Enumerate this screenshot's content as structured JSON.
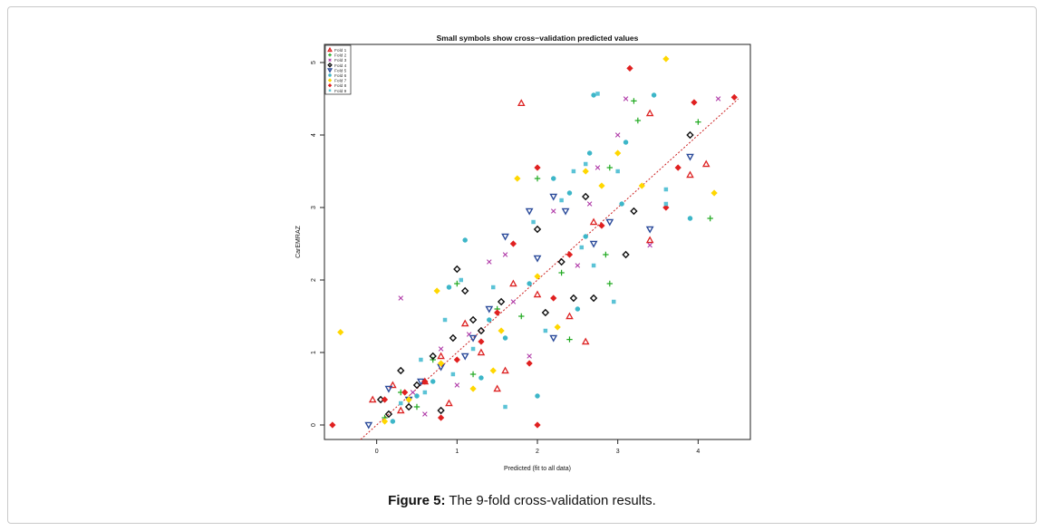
{
  "figure": {
    "caption_label": "Figure 5:",
    "caption_text": " The 9-fold cross-validation results."
  },
  "chart_data": {
    "type": "scatter",
    "title": "Small symbols show cross−validation predicted values",
    "xlabel": "Predicted (fit to all data)",
    "ylabel": "CarEMRAZ",
    "xlim": [
      -0.65,
      4.65
    ],
    "ylim": [
      -0.2,
      5.25
    ],
    "xticks": [
      0,
      1,
      2,
      3,
      4
    ],
    "yticks": [
      0,
      1,
      2,
      3,
      4,
      5
    ],
    "grid": false,
    "legend_position": "top-left",
    "reference_line": {
      "from": [
        -0.2,
        -0.2
      ],
      "to": [
        4.5,
        4.5
      ],
      "color": "#cc2222",
      "style": "dotted"
    },
    "series": [
      {
        "name": "Fold 1",
        "symbol": "triangle",
        "color": "#dd2222",
        "points": [
          [
            1.8,
            4.44
          ],
          [
            3.4,
            4.3
          ],
          [
            4.1,
            3.6
          ],
          [
            3.9,
            3.45
          ],
          [
            2.7,
            2.8
          ],
          [
            3.4,
            2.55
          ],
          [
            1.7,
            1.95
          ],
          [
            2.6,
            1.15
          ],
          [
            2.4,
            1.5
          ],
          [
            0.8,
            0.95
          ],
          [
            1.3,
            1.0
          ],
          [
            0.6,
            0.6
          ],
          [
            1.6,
            0.75
          ],
          [
            0.9,
            0.3
          ],
          [
            0.3,
            0.2
          ],
          [
            -0.05,
            0.35
          ],
          [
            0.2,
            0.55
          ],
          [
            1.5,
            0.5
          ],
          [
            2.0,
            1.8
          ],
          [
            1.1,
            1.4
          ]
        ]
      },
      {
        "name": "Fold 2",
        "symbol": "cross",
        "color": "#22aa22",
        "points": [
          [
            3.2,
            4.47
          ],
          [
            3.25,
            4.2
          ],
          [
            4.0,
            4.18
          ],
          [
            4.15,
            2.85
          ],
          [
            2.9,
            3.55
          ],
          [
            2.85,
            2.35
          ],
          [
            2.0,
            3.4
          ],
          [
            2.9,
            1.95
          ],
          [
            2.4,
            1.18
          ],
          [
            1.0,
            1.95
          ],
          [
            0.3,
            0.45
          ],
          [
            0.7,
            0.9
          ],
          [
            1.5,
            1.6
          ],
          [
            1.2,
            0.7
          ],
          [
            0.1,
            0.1
          ],
          [
            2.3,
            2.1
          ],
          [
            1.8,
            1.5
          ],
          [
            0.5,
            0.25
          ]
        ]
      },
      {
        "name": "Fold 3",
        "symbol": "x",
        "color": "#b03aa8",
        "points": [
          [
            3.1,
            4.5
          ],
          [
            4.25,
            4.5
          ],
          [
            3.0,
            4.0
          ],
          [
            2.75,
            3.55
          ],
          [
            3.4,
            2.48
          ],
          [
            0.3,
            1.75
          ],
          [
            1.6,
            2.35
          ],
          [
            1.4,
            2.25
          ],
          [
            1.15,
            1.25
          ],
          [
            0.8,
            1.05
          ],
          [
            0.45,
            0.45
          ],
          [
            2.2,
            2.95
          ],
          [
            2.65,
            3.05
          ],
          [
            1.9,
            0.95
          ],
          [
            0.6,
            0.15
          ],
          [
            1.0,
            0.55
          ],
          [
            2.5,
            2.2
          ],
          [
            1.7,
            1.7
          ]
        ]
      },
      {
        "name": "Fold 4",
        "symbol": "diamond",
        "color": "#111111",
        "points": [
          [
            3.9,
            4.0
          ],
          [
            2.6,
            3.15
          ],
          [
            3.2,
            2.95
          ],
          [
            2.3,
            2.25
          ],
          [
            2.7,
            1.75
          ],
          [
            2.45,
            1.75
          ],
          [
            2.0,
            2.7
          ],
          [
            1.1,
            1.85
          ],
          [
            1.2,
            1.45
          ],
          [
            1.3,
            1.3
          ],
          [
            0.95,
            1.2
          ],
          [
            0.7,
            0.95
          ],
          [
            0.5,
            0.55
          ],
          [
            0.3,
            0.75
          ],
          [
            0.4,
            0.25
          ],
          [
            0.15,
            0.15
          ],
          [
            0.05,
            0.35
          ],
          [
            1.55,
            1.7
          ],
          [
            1.0,
            2.15
          ],
          [
            2.1,
            1.55
          ],
          [
            3.1,
            2.35
          ],
          [
            0.8,
            0.2
          ]
        ]
      },
      {
        "name": "Fold 5",
        "symbol": "triangle-down",
        "color": "#2a4a9a",
        "points": [
          [
            3.9,
            3.7
          ],
          [
            3.4,
            2.7
          ],
          [
            2.9,
            2.8
          ],
          [
            2.2,
            3.15
          ],
          [
            1.9,
            2.95
          ],
          [
            1.6,
            2.6
          ],
          [
            2.0,
            2.3
          ],
          [
            1.4,
            1.6
          ],
          [
            1.1,
            0.95
          ],
          [
            0.8,
            0.8
          ],
          [
            0.4,
            0.35
          ],
          [
            0.15,
            0.5
          ],
          [
            -0.1,
            0.0
          ],
          [
            2.2,
            1.2
          ],
          [
            2.7,
            2.5
          ],
          [
            1.2,
            1.2
          ],
          [
            0.55,
            0.6
          ],
          [
            2.35,
            2.95
          ]
        ]
      },
      {
        "name": "Fold 6",
        "symbol": "circle",
        "color": "#3db6c8",
        "points": [
          [
            2.7,
            4.55
          ],
          [
            3.45,
            4.55
          ],
          [
            2.65,
            3.75
          ],
          [
            2.2,
            3.4
          ],
          [
            2.4,
            3.2
          ],
          [
            1.1,
            2.55
          ],
          [
            0.9,
            1.9
          ],
          [
            2.5,
            1.6
          ],
          [
            3.1,
            3.9
          ],
          [
            3.9,
            2.85
          ],
          [
            1.3,
            0.65
          ],
          [
            2.0,
            0.4
          ],
          [
            0.5,
            0.4
          ],
          [
            0.2,
            0.05
          ],
          [
            1.6,
            1.2
          ],
          [
            2.6,
            2.6
          ],
          [
            3.05,
            3.05
          ],
          [
            1.9,
            1.95
          ],
          [
            0.7,
            0.6
          ],
          [
            1.4,
            1.45
          ]
        ]
      },
      {
        "name": "Fold 7",
        "symbol": "diamond-filled",
        "color": "#ffd700",
        "points": [
          [
            3.6,
            5.05
          ],
          [
            4.2,
            3.2
          ],
          [
            3.0,
            3.75
          ],
          [
            2.6,
            3.5
          ],
          [
            1.75,
            3.4
          ],
          [
            -0.45,
            1.28
          ],
          [
            0.75,
            1.85
          ],
          [
            2.8,
            3.3
          ],
          [
            1.55,
            1.3
          ],
          [
            1.45,
            0.75
          ],
          [
            0.8,
            0.85
          ],
          [
            0.4,
            0.35
          ],
          [
            0.1,
            0.05
          ],
          [
            2.25,
            1.35
          ],
          [
            2.0,
            2.05
          ],
          [
            3.3,
            3.3
          ],
          [
            1.2,
            0.5
          ]
        ]
      },
      {
        "name": "Fold 8",
        "symbol": "diamond-filled",
        "color": "#e02020",
        "points": [
          [
            3.15,
            4.92
          ],
          [
            3.95,
            4.45
          ],
          [
            4.45,
            4.52
          ],
          [
            3.75,
            3.55
          ],
          [
            3.6,
            3.0
          ],
          [
            2.0,
            3.55
          ],
          [
            1.7,
            2.5
          ],
          [
            2.0,
            0.0
          ],
          [
            -0.55,
            0.0
          ],
          [
            1.9,
            0.85
          ],
          [
            0.6,
            0.6
          ],
          [
            0.35,
            0.45
          ],
          [
            0.1,
            0.35
          ],
          [
            1.0,
            0.9
          ],
          [
            1.3,
            1.15
          ],
          [
            2.2,
            1.75
          ],
          [
            2.8,
            2.75
          ],
          [
            0.8,
            0.1
          ],
          [
            1.5,
            1.55
          ],
          [
            2.4,
            2.35
          ]
        ]
      },
      {
        "name": "Fold 9",
        "symbol": "square",
        "color": "#5bc3d6",
        "points": [
          [
            2.75,
            4.57
          ],
          [
            2.6,
            3.6
          ],
          [
            2.45,
            3.5
          ],
          [
            3.6,
            3.25
          ],
          [
            3.6,
            3.05
          ],
          [
            2.3,
            3.1
          ],
          [
            1.95,
            2.8
          ],
          [
            2.7,
            2.2
          ],
          [
            2.95,
            1.7
          ],
          [
            1.05,
            2.0
          ],
          [
            0.85,
            1.45
          ],
          [
            1.2,
            1.05
          ],
          [
            0.55,
            0.9
          ],
          [
            0.6,
            0.45
          ],
          [
            0.3,
            0.3
          ],
          [
            1.6,
            0.25
          ],
          [
            2.1,
            1.3
          ],
          [
            3.0,
            3.5
          ],
          [
            1.45,
            1.9
          ],
          [
            2.55,
            2.45
          ],
          [
            0.95,
            0.7
          ]
        ]
      }
    ]
  }
}
